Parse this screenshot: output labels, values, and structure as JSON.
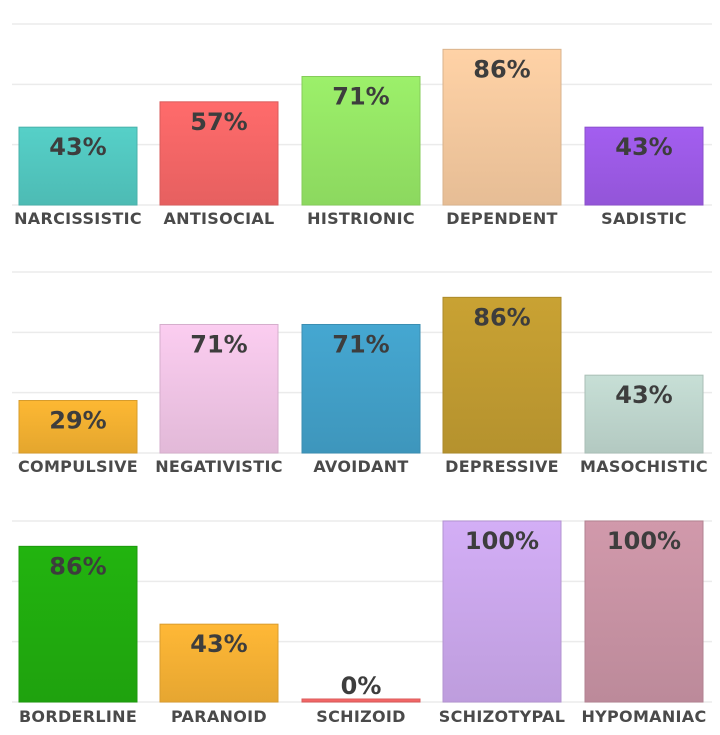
{
  "chart_data": [
    {
      "type": "bar",
      "categories": [
        "NARCISSISTIC",
        "ANTISOCIAL",
        "HISTRIONIC",
        "DEPENDENT",
        "SADISTIC"
      ],
      "values": [
        43,
        57,
        71,
        86,
        43
      ],
      "value_labels": [
        "43%",
        "57%",
        "71%",
        "86%",
        "43%"
      ],
      "colors": [
        "#56d0c8",
        "#ff6b6b",
        "#9cf06a",
        "#ffd2a6",
        "#a35ef0"
      ],
      "ylim": [
        0,
        100
      ],
      "grid": true
    },
    {
      "type": "bar",
      "categories": [
        "COMPULSIVE",
        "NEGATIVISTIC",
        "AVOIDANT",
        "DEPRESSIVE",
        "MASOCHISTIC"
      ],
      "values": [
        29,
        71,
        71,
        86,
        43
      ],
      "value_labels": [
        "29%",
        "71%",
        "71%",
        "86%",
        "43%"
      ],
      "colors": [
        "#fdb833",
        "#fbcdf0",
        "#45a7d1",
        "#c9a233",
        "#c7dfd6"
      ],
      "ylim": [
        0,
        100
      ],
      "grid": true
    },
    {
      "type": "bar",
      "categories": [
        "BORDERLINE",
        "PARANOID",
        "SCHIZOID",
        "SCHIZOTYPAL",
        "HYPOMANIAC"
      ],
      "values": [
        86,
        43,
        0,
        100,
        100
      ],
      "value_labels": [
        "86%",
        "43%",
        "0%",
        "100%",
        "100%"
      ],
      "colors": [
        "#22b40f",
        "#ffb836",
        "#ff6b6b",
        "#d3aef6",
        "#d199ab"
      ],
      "ylim": [
        0,
        100
      ],
      "grid": true
    }
  ]
}
